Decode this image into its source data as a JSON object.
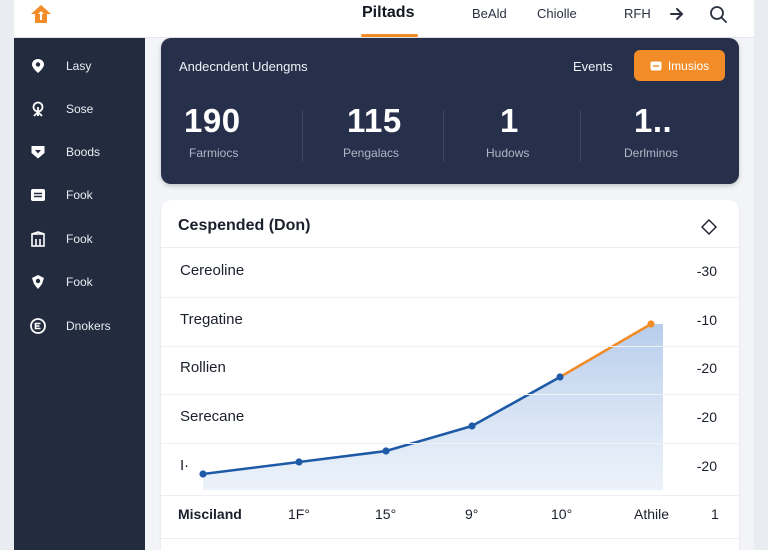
{
  "header": {
    "brand": "Piltads",
    "links": [
      "BeAld",
      "Chiolle",
      "RFH"
    ],
    "icons": [
      "arrow-right-icon",
      "search-icon"
    ]
  },
  "sidebar": {
    "items": [
      {
        "label": "Lasy",
        "icon": "pin-icon"
      },
      {
        "label": "Sose",
        "icon": "tree-icon"
      },
      {
        "label": "Boods",
        "icon": "shield-icon"
      },
      {
        "label": "Fook",
        "icon": "list-icon"
      },
      {
        "label": "Fook",
        "icon": "building-icon"
      },
      {
        "label": "Fook",
        "icon": "badge-icon"
      },
      {
        "label": "Dnokers",
        "icon": "circle-e-icon"
      }
    ]
  },
  "stats": {
    "title": "Andecndent Udengms",
    "events_label": "Events",
    "button_label": "Imusios",
    "items": [
      {
        "value": "190",
        "caption": "Farmiocs"
      },
      {
        "value": "115",
        "caption": "Pengalacs"
      },
      {
        "value": "1",
        "caption": "Hudows"
      },
      {
        "value": "1..",
        "caption": "Derlminos"
      }
    ]
  },
  "card": {
    "title": "Cespended (Don)",
    "rows": [
      {
        "label": "Cereoline",
        "value": "-30"
      },
      {
        "label": "Tregatine",
        "value": "-10"
      },
      {
        "label": "Rollien",
        "value": "-20"
      },
      {
        "label": "Serecane",
        "value": "-20"
      },
      {
        "label": "I·",
        "value": "-20"
      }
    ],
    "footer": [
      "Misciland",
      "1F°",
      "15°",
      "9°",
      "10°",
      "Athile",
      "1"
    ]
  },
  "colors": {
    "accent": "#f28c28",
    "line": "#1f5aa6",
    "sidebar": "#232c3e",
    "panel": "#26304a"
  }
}
